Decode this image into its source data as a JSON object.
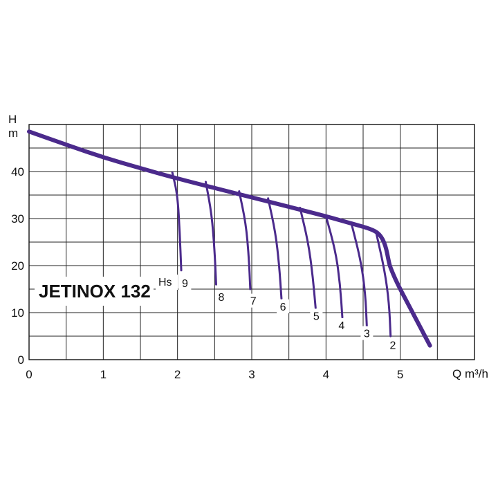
{
  "chart_data": {
    "type": "line",
    "title": "JETINOX 132",
    "ylabel_top": "H",
    "ylabel_bottom": "m",
    "xlabel": "Q m³/h",
    "hs_label": "Hs",
    "xlim": [
      0,
      6
    ],
    "ylim": [
      0,
      50
    ],
    "x_ticks": [
      "0",
      "1",
      "2",
      "3",
      "4",
      "5"
    ],
    "y_ticks": [
      "0",
      "10",
      "20",
      "30",
      "40"
    ],
    "grid": true,
    "line_color": "#4b2a8c",
    "main_curve": {
      "x": [
        0,
        0.5,
        1,
        1.5,
        2,
        2.5,
        3,
        3.5,
        4,
        4.4,
        4.6,
        4.72,
        4.8,
        4.85,
        4.87,
        4.95,
        5.1,
        5.25,
        5.4
      ],
      "y": [
        48.5,
        45.7,
        43,
        40.7,
        38.5,
        36.5,
        34.5,
        32.5,
        30.5,
        28.7,
        27.8,
        26.8,
        24.5,
        20.5,
        19.5,
        16.5,
        12,
        7.5,
        3
      ]
    },
    "suction_curves": [
      {
        "hs": "9",
        "x": [
          1.93,
          2.0,
          2.03,
          2.05
        ],
        "y": [
          39.8,
          35,
          27,
          19
        ]
      },
      {
        "hs": "8",
        "x": [
          2.38,
          2.46,
          2.5,
          2.52
        ],
        "y": [
          37.8,
          31,
          23,
          16
        ]
      },
      {
        "hs": "7",
        "x": [
          2.83,
          2.92,
          2.96,
          2.98
        ],
        "y": [
          35.8,
          29,
          22,
          15
        ]
      },
      {
        "hs": "6",
        "x": [
          3.22,
          3.32,
          3.37,
          3.4
        ],
        "y": [
          34.3,
          27,
          20,
          13
        ]
      },
      {
        "hs": "5",
        "x": [
          3.65,
          3.76,
          3.82,
          3.86
        ],
        "y": [
          32.3,
          25,
          18,
          11
        ]
      },
      {
        "hs": "4",
        "x": [
          4.0,
          4.13,
          4.19,
          4.22
        ],
        "y": [
          30.5,
          23,
          16,
          9
        ]
      },
      {
        "hs": "3",
        "x": [
          4.34,
          4.47,
          4.53,
          4.55
        ],
        "y": [
          29.1,
          21,
          14,
          7
        ]
      },
      {
        "hs": "2",
        "x": [
          4.67,
          4.79,
          4.85,
          4.87
        ],
        "y": [
          27.4,
          19,
          12,
          5
        ]
      }
    ],
    "hs_labels": [
      {
        "text": "9",
        "x": 2.1,
        "y": 16.5
      },
      {
        "text": "8",
        "x": 2.59,
        "y": 13.5
      },
      {
        "text": "7",
        "x": 3.02,
        "y": 12.7
      },
      {
        "text": "6",
        "x": 3.42,
        "y": 11.5
      },
      {
        "text": "5",
        "x": 3.87,
        "y": 9.5
      },
      {
        "text": "4",
        "x": 4.21,
        "y": 7.5
      },
      {
        "text": "3",
        "x": 4.55,
        "y": 5.8
      },
      {
        "text": "2",
        "x": 4.9,
        "y": 3.3
      }
    ]
  }
}
